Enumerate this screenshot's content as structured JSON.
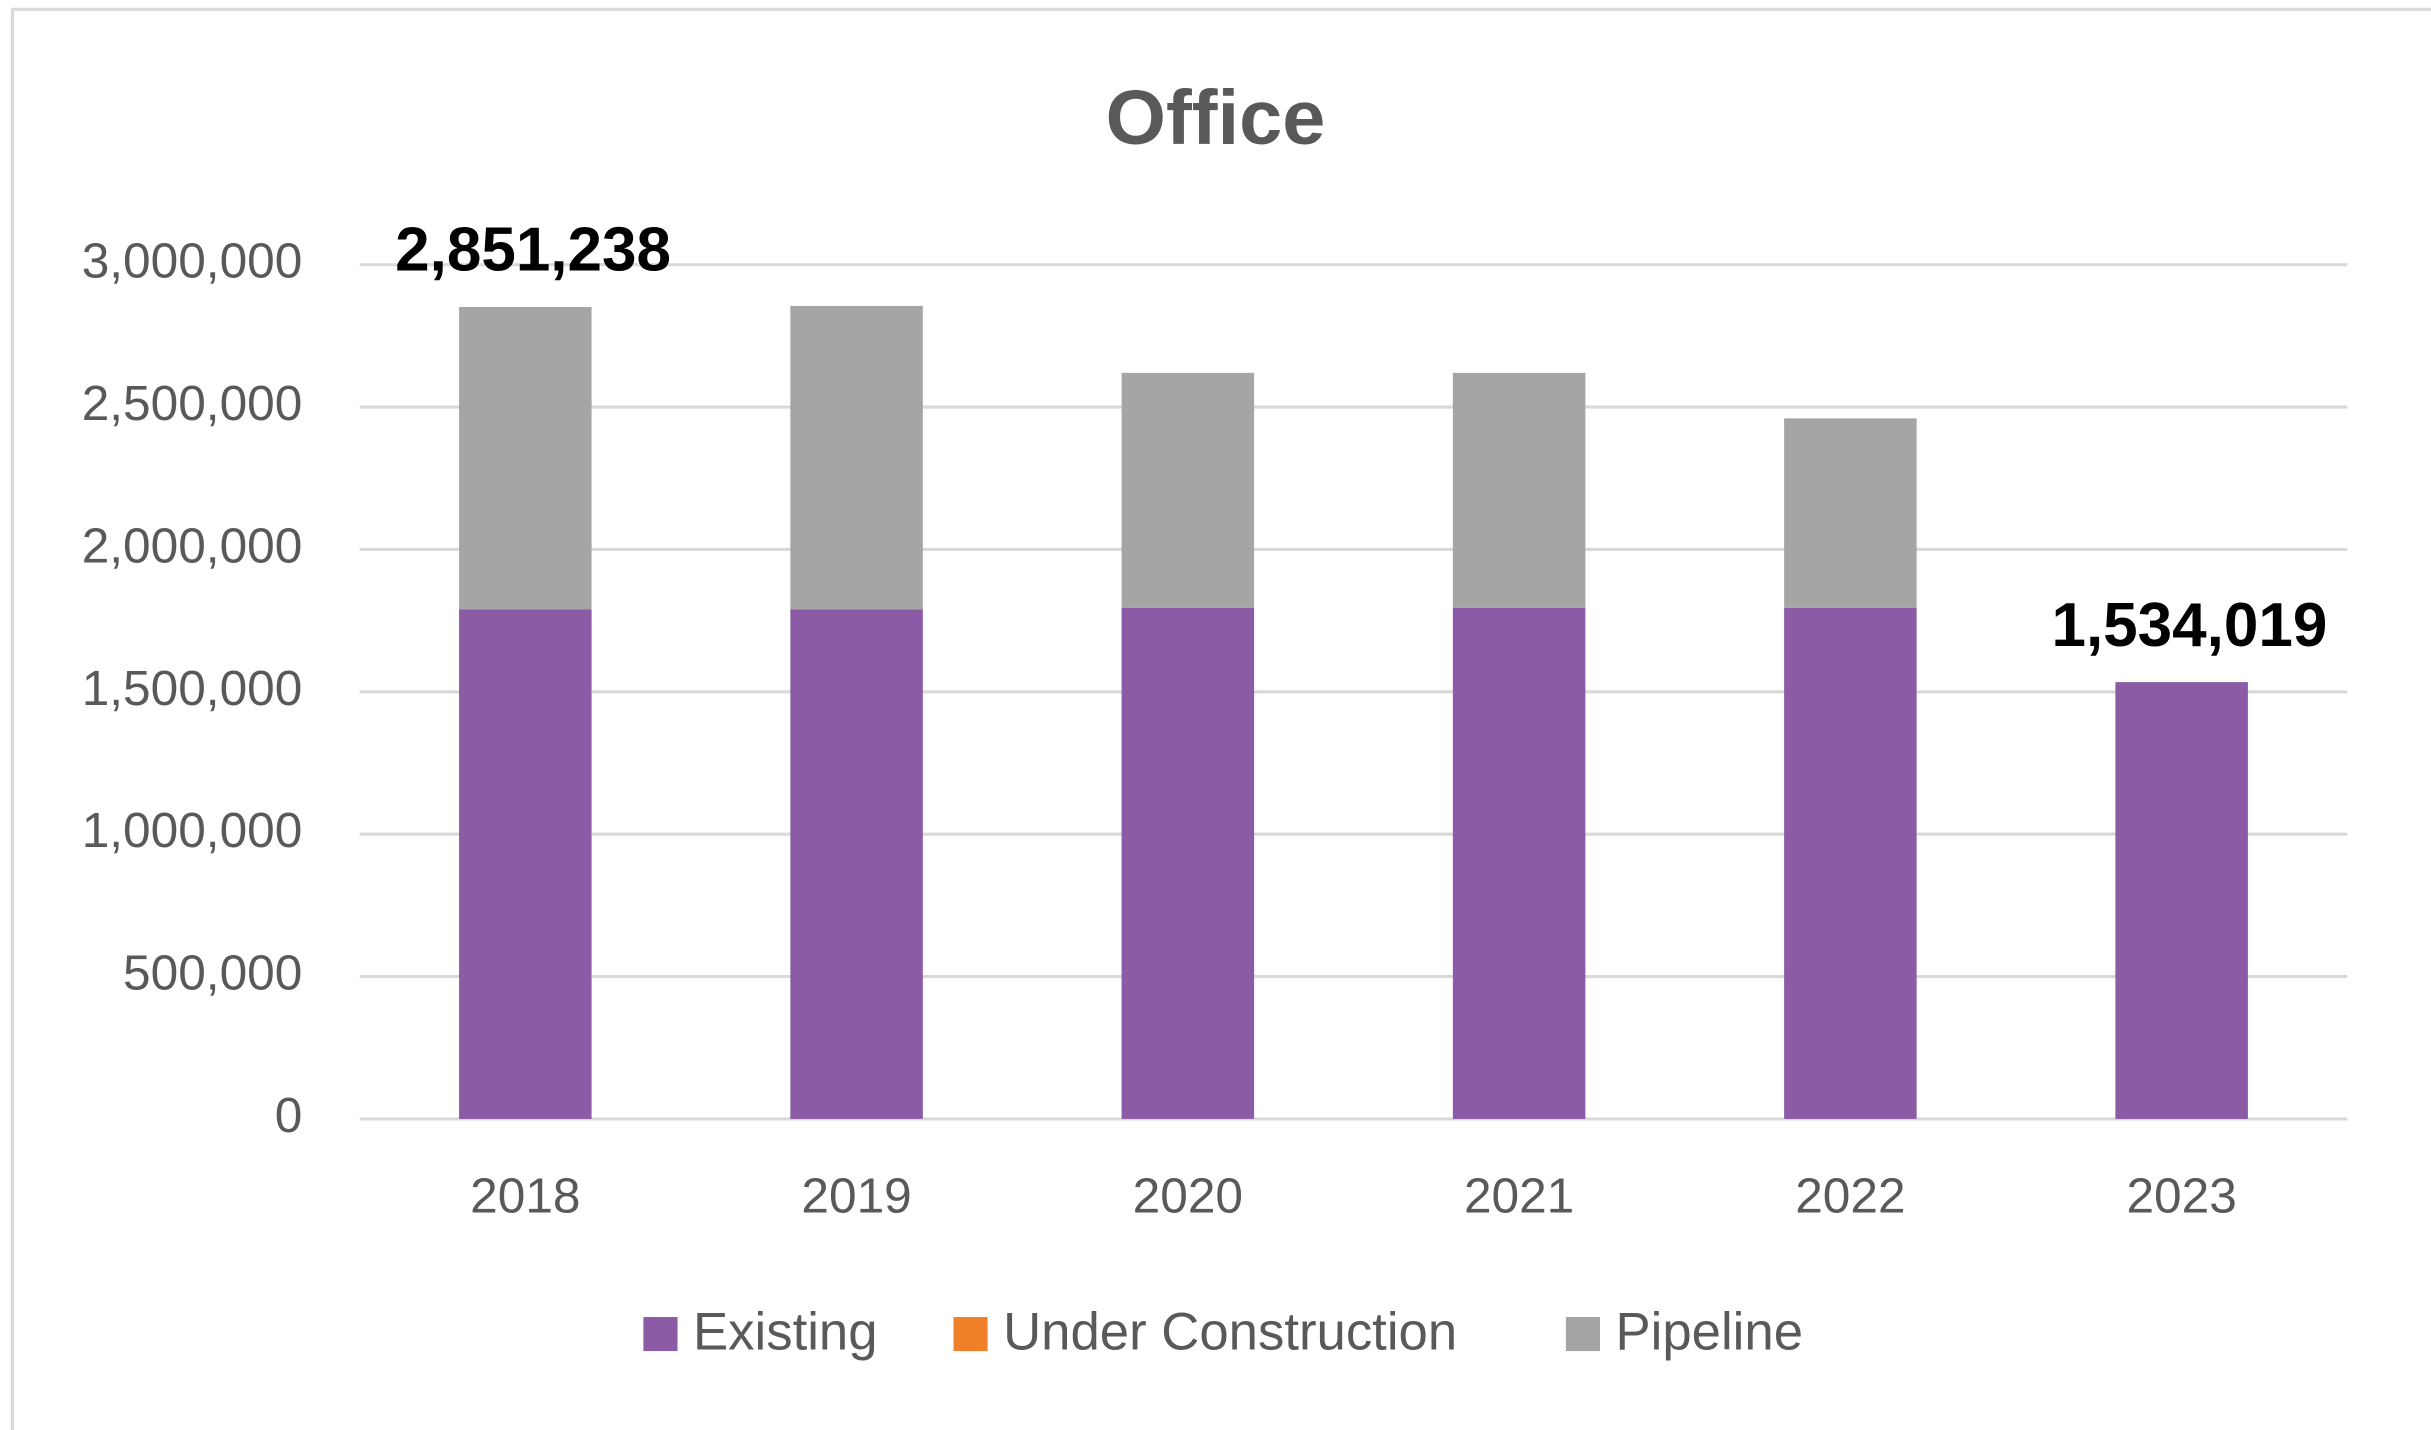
{
  "chart_data": {
    "type": "stacked_bar",
    "title": "Office",
    "categories": [
      "2018",
      "2019",
      "2020",
      "2021",
      "2022",
      "2023"
    ],
    "series": [
      {
        "name": "Existing",
        "color": "#8b5ba5",
        "values": [
          1790000,
          1790000,
          1795000,
          1795000,
          1795000,
          1534019
        ]
      },
      {
        "name": "Under Construction",
        "color": "#f07f2a",
        "values": [
          0,
          0,
          0,
          0,
          0,
          0
        ]
      },
      {
        "name": "Pipeline",
        "color": "#a5a5a5",
        "values": [
          1061238,
          1065000,
          825000,
          825000,
          665000,
          0
        ]
      }
    ],
    "annotations": [
      {
        "text": "2,851,238",
        "x": "2018",
        "y": 2851238
      },
      {
        "text": "1,534,019",
        "x": "2023",
        "y": 1534019
      }
    ],
    "ylim": [
      0,
      3000000
    ],
    "yticks": [
      0,
      {
        "value": 500000,
        "label": "500,000"
      },
      {
        "value": 1000000,
        "label": "1,000,000"
      },
      {
        "value": 1500000,
        "label": "1,500,000"
      },
      {
        "value": 2000000,
        "label": "2,000,000"
      },
      {
        "value": 2500000,
        "label": "2,500,000"
      },
      {
        "value": 3000000,
        "label": "3,000,000"
      }
    ],
    "grid": true,
    "legend": "bottom"
  }
}
